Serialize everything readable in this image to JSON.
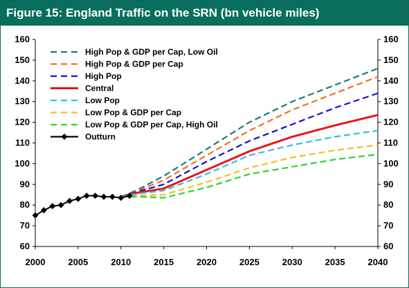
{
  "header": {
    "title": "Figure 15: England Traffic on the SRN (bn vehicle miles)"
  },
  "chart_data": {
    "type": "line",
    "title": "Figure 15: England Traffic on the SRN (bn vehicle miles)",
    "xlabel": "",
    "ylabel": "",
    "xlim": [
      2000,
      2040
    ],
    "ylim": [
      60,
      160
    ],
    "x_ticks": [
      2000,
      2005,
      2010,
      2015,
      2020,
      2025,
      2030,
      2035,
      2040
    ],
    "y_ticks": [
      60,
      70,
      80,
      90,
      100,
      110,
      120,
      130,
      140,
      150,
      160
    ],
    "grid": false,
    "legend_position": "top-left",
    "series": [
      {
        "name": "High Pop & GDP per Cap, Low Oil",
        "color": "#1a7a7a",
        "style": "dashed",
        "x": [
          2010,
          2012,
          2015,
          2020,
          2025,
          2030,
          2035,
          2040
        ],
        "y": [
          84,
          87.5,
          94,
          107,
          120,
          130,
          138,
          146
        ]
      },
      {
        "name": "High Pop & GDP per Cap",
        "color": "#f07020",
        "style": "dashed",
        "x": [
          2010,
          2012,
          2015,
          2020,
          2025,
          2030,
          2035,
          2040
        ],
        "y": [
          84,
          87,
          92,
          104,
          116,
          126,
          134,
          142
        ]
      },
      {
        "name": "High Pop",
        "color": "#1010d0",
        "style": "dashed",
        "x": [
          2010,
          2012,
          2015,
          2020,
          2025,
          2030,
          2035,
          2040
        ],
        "y": [
          84,
          86.5,
          90,
          101,
          111,
          119,
          127,
          134
        ]
      },
      {
        "name": "Central",
        "color": "#e8141a",
        "style": "solid",
        "x": [
          2010,
          2012,
          2015,
          2020,
          2025,
          2030,
          2035,
          2040
        ],
        "y": [
          84,
          86,
          88,
          97,
          106,
          113,
          118.5,
          123.5
        ]
      },
      {
        "name": "Low Pop",
        "color": "#30c0e0",
        "style": "dashed",
        "x": [
          2010,
          2012,
          2015,
          2020,
          2025,
          2030,
          2035,
          2040
        ],
        "y": [
          84,
          85.5,
          87,
          95,
          104,
          109,
          113,
          116
        ]
      },
      {
        "name": "Low Pop & GDP per Cap",
        "color": "#f0c020",
        "style": "dashed",
        "x": [
          2010,
          2012,
          2015,
          2020,
          2025,
          2030,
          2035,
          2040
        ],
        "y": [
          84,
          84.5,
          85,
          91,
          98,
          103,
          106.5,
          109
        ]
      },
      {
        "name": "Low Pop & GDP per Cap, High Oil",
        "color": "#30d030",
        "style": "dashed",
        "x": [
          2010,
          2012,
          2015,
          2020,
          2025,
          2030,
          2035,
          2040
        ],
        "y": [
          84,
          84,
          83.5,
          88.5,
          95,
          98.5,
          102,
          104.5
        ]
      },
      {
        "name": "Outturn",
        "color": "#000000",
        "style": "solid-marker",
        "x": [
          2000,
          2001,
          2002,
          2003,
          2004,
          2005,
          2006,
          2007,
          2008,
          2009,
          2010,
          2011
        ],
        "y": [
          75,
          77.5,
          79.5,
          80,
          82,
          83,
          84.5,
          84.5,
          84,
          84,
          83.5,
          84.5
        ]
      }
    ]
  }
}
